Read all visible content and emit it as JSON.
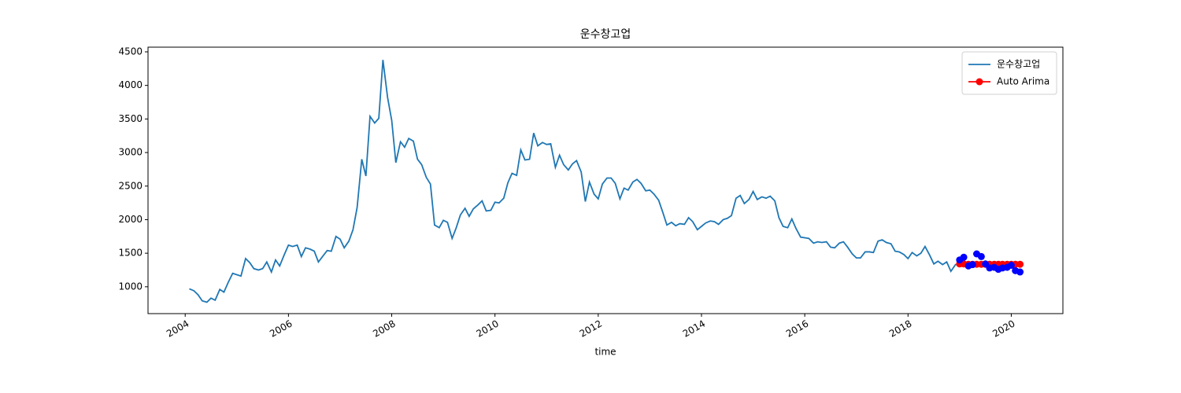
{
  "chart_data": {
    "type": "line",
    "title": "운수창고업",
    "xlabel": "time",
    "legend": "upper right",
    "xlim": [
      2003.28,
      2021.0
    ],
    "xticks": [
      2004,
      2006,
      2008,
      2010,
      2012,
      2014,
      2016,
      2018,
      2020
    ],
    "ylim": [
      600,
      4570
    ],
    "yticks": [
      1000,
      1500,
      2000,
      2500,
      3000,
      3500,
      4000,
      4500
    ],
    "series": [
      {
        "name": "운수창고업",
        "color": "#1f77b4",
        "line": true,
        "marker": false,
        "x": [
          2004.08,
          2004.17,
          2004.25,
          2004.33,
          2004.42,
          2004.5,
          2004.58,
          2004.67,
          2004.75,
          2004.83,
          2004.92,
          2005.0,
          2005.08,
          2005.17,
          2005.25,
          2005.33,
          2005.42,
          2005.5,
          2005.58,
          2005.67,
          2005.75,
          2005.83,
          2005.92,
          2006.0,
          2006.08,
          2006.17,
          2006.25,
          2006.33,
          2006.42,
          2006.5,
          2006.58,
          2006.67,
          2006.75,
          2006.83,
          2006.92,
          2007.0,
          2007.08,
          2007.17,
          2007.25,
          2007.33,
          2007.42,
          2007.5,
          2007.58,
          2007.67,
          2007.75,
          2007.83,
          2007.92,
          2008.0,
          2008.08,
          2008.17,
          2008.25,
          2008.33,
          2008.42,
          2008.5,
          2008.58,
          2008.67,
          2008.75,
          2008.83,
          2008.92,
          2009.0,
          2009.08,
          2009.17,
          2009.25,
          2009.33,
          2009.42,
          2009.5,
          2009.58,
          2009.67,
          2009.75,
          2009.83,
          2009.92,
          2010.0,
          2010.08,
          2010.17,
          2010.25,
          2010.33,
          2010.42,
          2010.5,
          2010.58,
          2010.67,
          2010.75,
          2010.83,
          2010.92,
          2011.0,
          2011.08,
          2011.17,
          2011.25,
          2011.33,
          2011.42,
          2011.5,
          2011.58,
          2011.67,
          2011.75,
          2011.83,
          2011.92,
          2012.0,
          2012.08,
          2012.17,
          2012.25,
          2012.33,
          2012.42,
          2012.5,
          2012.58,
          2012.67,
          2012.75,
          2012.83,
          2012.92,
          2013.0,
          2013.08,
          2013.17,
          2013.25,
          2013.33,
          2013.42,
          2013.5,
          2013.58,
          2013.67,
          2013.75,
          2013.83,
          2013.92,
          2014.0,
          2014.08,
          2014.17,
          2014.25,
          2014.33,
          2014.42,
          2014.5,
          2014.58,
          2014.67,
          2014.75,
          2014.83,
          2014.92,
          2015.0,
          2015.08,
          2015.17,
          2015.25,
          2015.33,
          2015.42,
          2015.5,
          2015.58,
          2015.67,
          2015.75,
          2015.83,
          2015.92,
          2016.0,
          2016.08,
          2016.17,
          2016.25,
          2016.33,
          2016.42,
          2016.5,
          2016.58,
          2016.67,
          2016.75,
          2016.83,
          2016.92,
          2017.0,
          2017.08,
          2017.17,
          2017.25,
          2017.33,
          2017.42,
          2017.5,
          2017.58,
          2017.67,
          2017.75,
          2017.83,
          2017.92,
          2018.0,
          2018.08,
          2018.17,
          2018.25,
          2018.33,
          2018.42,
          2018.5,
          2018.58,
          2018.67,
          2018.75,
          2018.83,
          2018.92,
          2019.0
        ],
        "values": [
          970,
          940,
          880,
          790,
          770,
          830,
          800,
          960,
          920,
          1060,
          1200,
          1180,
          1160,
          1420,
          1360,
          1270,
          1250,
          1270,
          1370,
          1220,
          1400,
          1310,
          1480,
          1620,
          1600,
          1620,
          1450,
          1580,
          1560,
          1530,
          1370,
          1460,
          1540,
          1530,
          1750,
          1710,
          1580,
          1680,
          1850,
          2180,
          2900,
          2650,
          3540,
          3440,
          3510,
          4380,
          3820,
          3480,
          2850,
          3160,
          3080,
          3210,
          3170,
          2900,
          2820,
          2630,
          2530,
          1920,
          1880,
          1990,
          1960,
          1720,
          1880,
          2070,
          2170,
          2050,
          2160,
          2220,
          2280,
          2130,
          2140,
          2260,
          2250,
          2320,
          2550,
          2690,
          2660,
          3040,
          2890,
          2900,
          3290,
          3100,
          3150,
          3120,
          3130,
          2780,
          2960,
          2820,
          2740,
          2830,
          2880,
          2710,
          2270,
          2560,
          2380,
          2310,
          2530,
          2620,
          2620,
          2540,
          2310,
          2470,
          2440,
          2560,
          2600,
          2540,
          2430,
          2440,
          2380,
          2290,
          2110,
          1920,
          1960,
          1910,
          1940,
          1930,
          2030,
          1970,
          1850,
          1900,
          1950,
          1980,
          1970,
          1930,
          2000,
          2020,
          2060,
          2320,
          2360,
          2240,
          2300,
          2420,
          2300,
          2340,
          2320,
          2350,
          2280,
          2030,
          1900,
          1880,
          2010,
          1870,
          1740,
          1730,
          1720,
          1650,
          1670,
          1660,
          1670,
          1590,
          1580,
          1650,
          1670,
          1590,
          1490,
          1430,
          1430,
          1520,
          1520,
          1510,
          1680,
          1700,
          1660,
          1640,
          1530,
          1520,
          1480,
          1420,
          1510,
          1460,
          1500,
          1600,
          1470,
          1340,
          1380,
          1330,
          1370,
          1230,
          1330,
          1330
        ]
      },
      {
        "name": "Auto Arima",
        "color": "#ff0000",
        "line": true,
        "marker": true,
        "x": [
          2019.0,
          2019.08,
          2019.17,
          2019.25,
          2019.33,
          2019.42,
          2019.5,
          2019.58,
          2019.67,
          2019.75,
          2019.83,
          2019.92,
          2020.0,
          2020.08,
          2020.17
        ],
        "values": [
          1340,
          1340,
          1335,
          1335,
          1335,
          1335,
          1335,
          1335,
          1335,
          1335,
          1335,
          1335,
          1335,
          1335,
          1335
        ]
      },
      {
        "color": "#0000ff",
        "line": false,
        "marker": true,
        "x": [
          2019.0,
          2019.08,
          2019.17,
          2019.25,
          2019.33,
          2019.42,
          2019.5,
          2019.58,
          2019.67,
          2019.75,
          2019.83,
          2019.92,
          2020.0,
          2020.08,
          2020.17
        ],
        "values": [
          1400,
          1440,
          1310,
          1330,
          1490,
          1450,
          1340,
          1280,
          1290,
          1260,
          1280,
          1290,
          1320,
          1240,
          1220
        ]
      }
    ]
  }
}
